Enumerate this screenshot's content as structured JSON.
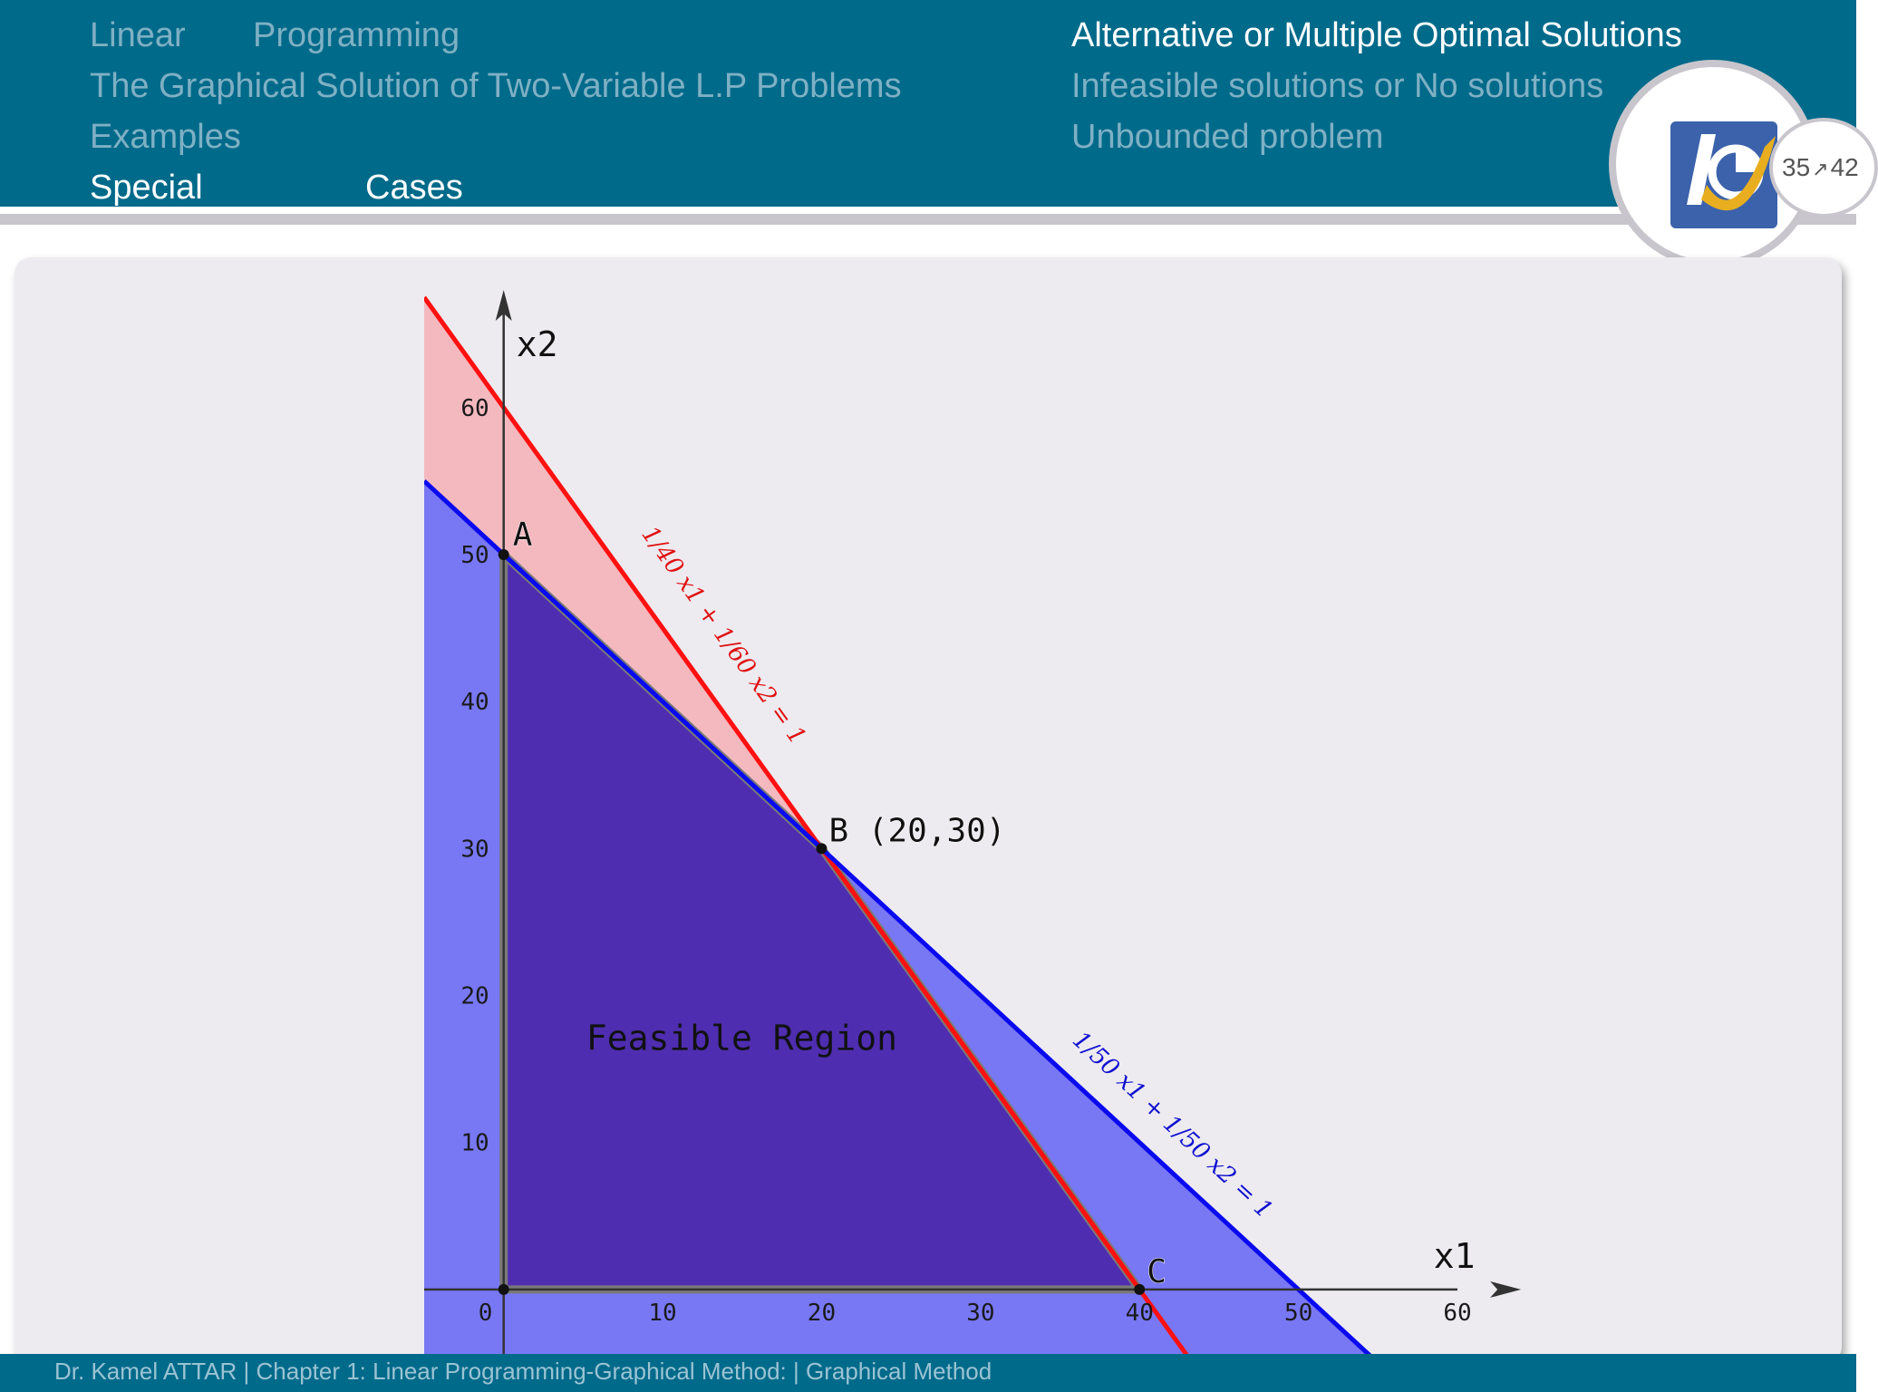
{
  "header": {
    "left_nav": [
      {
        "label": "Linear"
      },
      {
        "label": "Programming"
      },
      {
        "label": "The Graphical Solution of Two-Variable L.P Problems"
      },
      {
        "label": "Examples"
      },
      {
        "label": "Special"
      },
      {
        "label": "Cases"
      }
    ],
    "right_nav": [
      {
        "label": "Alternative or Multiple Optimal Solutions"
      },
      {
        "label": "Infeasible solutions or No solutions"
      },
      {
        "label": "Unbounded problem"
      }
    ],
    "page": {
      "current": "35",
      "total": "42"
    }
  },
  "colors": {
    "header_bg": "#006a8a",
    "constraint_1": "#ff1010",
    "constraint_2": "#0a0aee",
    "feasible_region": "#4f2db0",
    "constraint_1_fill": "#f4b9bf",
    "constraint_2_fill": "#7878f5"
  },
  "chart_data": {
    "type": "area",
    "xlabel": "x1",
    "ylabel": "x2",
    "xlim": [
      -5,
      60
    ],
    "ylim": [
      -5,
      68
    ],
    "x_ticks": [
      0,
      10,
      20,
      30,
      40,
      50,
      60
    ],
    "y_ticks": [
      10,
      20,
      30,
      40,
      50,
      60
    ],
    "lines": [
      {
        "label": "1/40 x1 + 1/60 x2 = 1",
        "x_intercept": 40,
        "y_intercept": 60
      },
      {
        "label": "1/50 x1 + 1/50 x2 = 1",
        "x_intercept": 50,
        "y_intercept": 50
      }
    ],
    "feasible_region": {
      "label": "Feasible Region",
      "vertices": [
        [
          0,
          0
        ],
        [
          0,
          50
        ],
        [
          20,
          30
        ],
        [
          40,
          0
        ]
      ]
    },
    "points": [
      {
        "label": "A",
        "x": 0,
        "y": 50
      },
      {
        "label": "B (20,30)",
        "x": 20,
        "y": 30
      },
      {
        "label": "C",
        "x": 40,
        "y": 0
      }
    ]
  },
  "footer": {
    "text": "Dr. Kamel ATTAR | Chapter 1: Linear Programming-Graphical Method: | Graphical Method"
  }
}
